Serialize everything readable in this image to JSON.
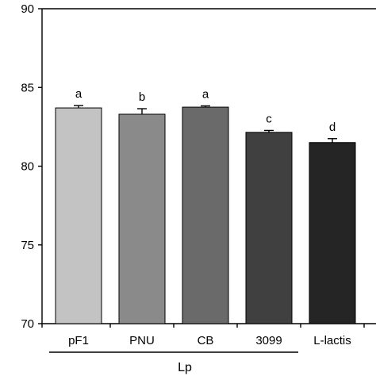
{
  "chart_data": {
    "type": "bar",
    "title": "",
    "xlabel": "",
    "ylabel": "",
    "categories": [
      "pF1",
      "PNU",
      "CB",
      "3099",
      "L-lactis"
    ],
    "values": [
      83.7,
      83.3,
      83.75,
      82.15,
      81.5
    ],
    "errors": [
      0.15,
      0.35,
      0.08,
      0.12,
      0.25
    ],
    "significance": [
      "a",
      "b",
      "a",
      "c",
      "d"
    ],
    "bar_colors": [
      "#c3c3c3",
      "#8a8a8a",
      "#6a6a6a",
      "#404040",
      "#252525"
    ],
    "ylim": [
      70,
      90
    ],
    "yticks": [
      70,
      75,
      80,
      85,
      90
    ],
    "group": {
      "label": "Lp",
      "spans": [
        "pF1",
        "PNU",
        "CB",
        "3099"
      ]
    },
    "grid": false,
    "legend": "none"
  }
}
